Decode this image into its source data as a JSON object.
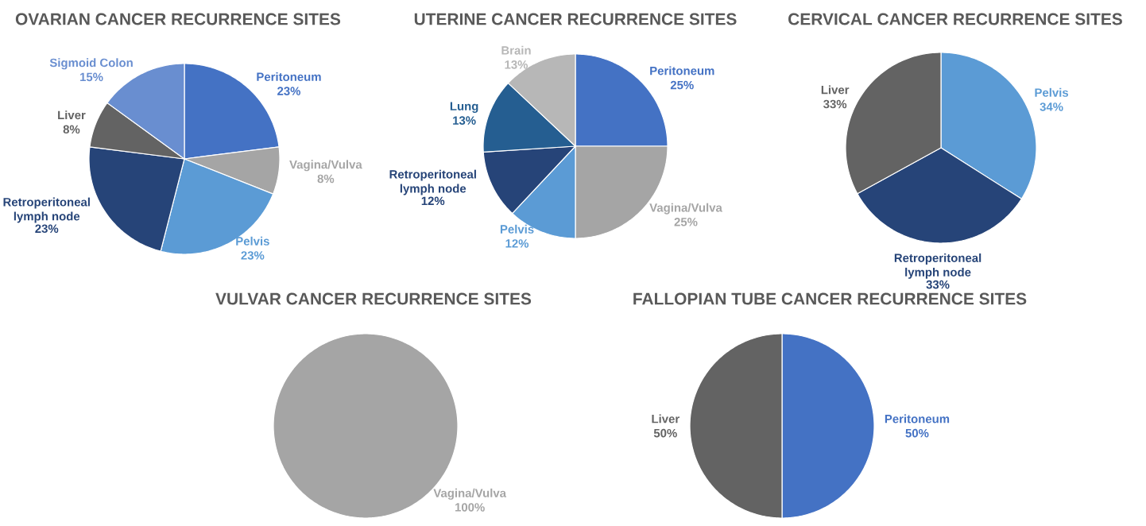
{
  "chart_data": [
    {
      "type": "pie",
      "title": "OVARIAN CANCER RECURRENCE SITES",
      "categories": [
        "Peritoneum",
        "Vagina/Vulva",
        "Pelvis",
        "Retroperitoneal lymph node",
        "Liver",
        "Sigmoid Colon"
      ],
      "values": [
        23,
        8,
        23,
        23,
        8,
        15
      ],
      "value_labels": [
        "23%",
        "8%",
        "23%",
        "23%",
        "8%",
        "15%"
      ],
      "colors": [
        "#4472c4",
        "#a5a5a5",
        "#5b9bd5",
        "#264478",
        "#636363",
        "#698ed0"
      ]
    },
    {
      "type": "pie",
      "title": "UTERINE CANCER RECURRENCE SITES",
      "categories": [
        "Peritoneum",
        "Vagina/Vulva",
        "Pelvis",
        "Retroperitoneal lymph node",
        "Lung",
        "Brain"
      ],
      "values": [
        25,
        25,
        12,
        12,
        13,
        13
      ],
      "value_labels": [
        "25%",
        "25%",
        "12%",
        "12%",
        "13%",
        "13%"
      ],
      "colors": [
        "#4472c4",
        "#a5a5a5",
        "#5b9bd5",
        "#264478",
        "#255e91",
        "#b7b7b7"
      ]
    },
    {
      "type": "pie",
      "title": "CERVICAL CANCER RECURRENCE SITES",
      "categories": [
        "Pelvis",
        "Retroperitoneal lymph node",
        "Liver"
      ],
      "values": [
        34,
        33,
        33
      ],
      "value_labels": [
        "34%",
        "33%",
        "33%"
      ],
      "colors": [
        "#5b9bd5",
        "#264478",
        "#636363"
      ]
    },
    {
      "type": "pie",
      "title": "VULVAR CANCER RECURRENCE SITES",
      "categories": [
        "Vagina/Vulva"
      ],
      "values": [
        100
      ],
      "value_labels": [
        "100%"
      ],
      "colors": [
        "#a5a5a5"
      ]
    },
    {
      "type": "pie",
      "title": "FALLOPIAN TUBE CANCER RECURRENCE SITES",
      "categories": [
        "Peritoneum",
        "Liver"
      ],
      "values": [
        50,
        50
      ],
      "value_labels": [
        "50%",
        "50%"
      ],
      "colors": [
        "#4472c4",
        "#636363"
      ]
    }
  ]
}
